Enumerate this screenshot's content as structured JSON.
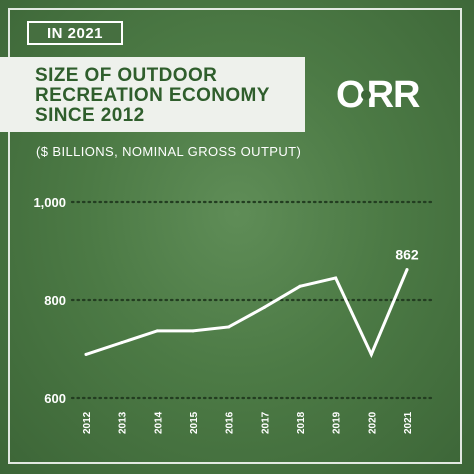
{
  "header": {
    "badge": "IN 2021",
    "title_lines": [
      "SIZE OF OUTDOOR",
      "RECREATION ECONOMY",
      "SINCE 2012"
    ],
    "subtitle": "($ BILLIONS, NOMINAL GROSS OUTPUT)"
  },
  "logo": {
    "text_left": "O",
    "text_right": "RR"
  },
  "colors": {
    "background": "#4c7a45",
    "title_text": "#2f5e2c",
    "title_box": "#eef1ec",
    "line": "#ffffff"
  },
  "chart_data": {
    "type": "line",
    "title": "SIZE OF OUTDOOR RECREATION ECONOMY SINCE 2012",
    "subtitle": "($ BILLIONS, NOMINAL GROSS OUTPUT)",
    "xlabel": "",
    "ylabel": "",
    "x": [
      "2012",
      "2013",
      "2014",
      "2015",
      "2016",
      "2017",
      "2018",
      "2019",
      "2020",
      "2021"
    ],
    "y_tick_labels": [
      "1,000",
      "800",
      "600"
    ],
    "y_ticks": [
      1000,
      800,
      600
    ],
    "ylim": [
      600,
      1000
    ],
    "grid": true,
    "grid_style": "dotted",
    "series": [
      {
        "name": "",
        "values": [
          689,
          713,
          737,
          737,
          745,
          785,
          828,
          845,
          689,
          862
        ]
      }
    ],
    "annotations": [
      {
        "x": "2021",
        "text": "862"
      }
    ]
  }
}
